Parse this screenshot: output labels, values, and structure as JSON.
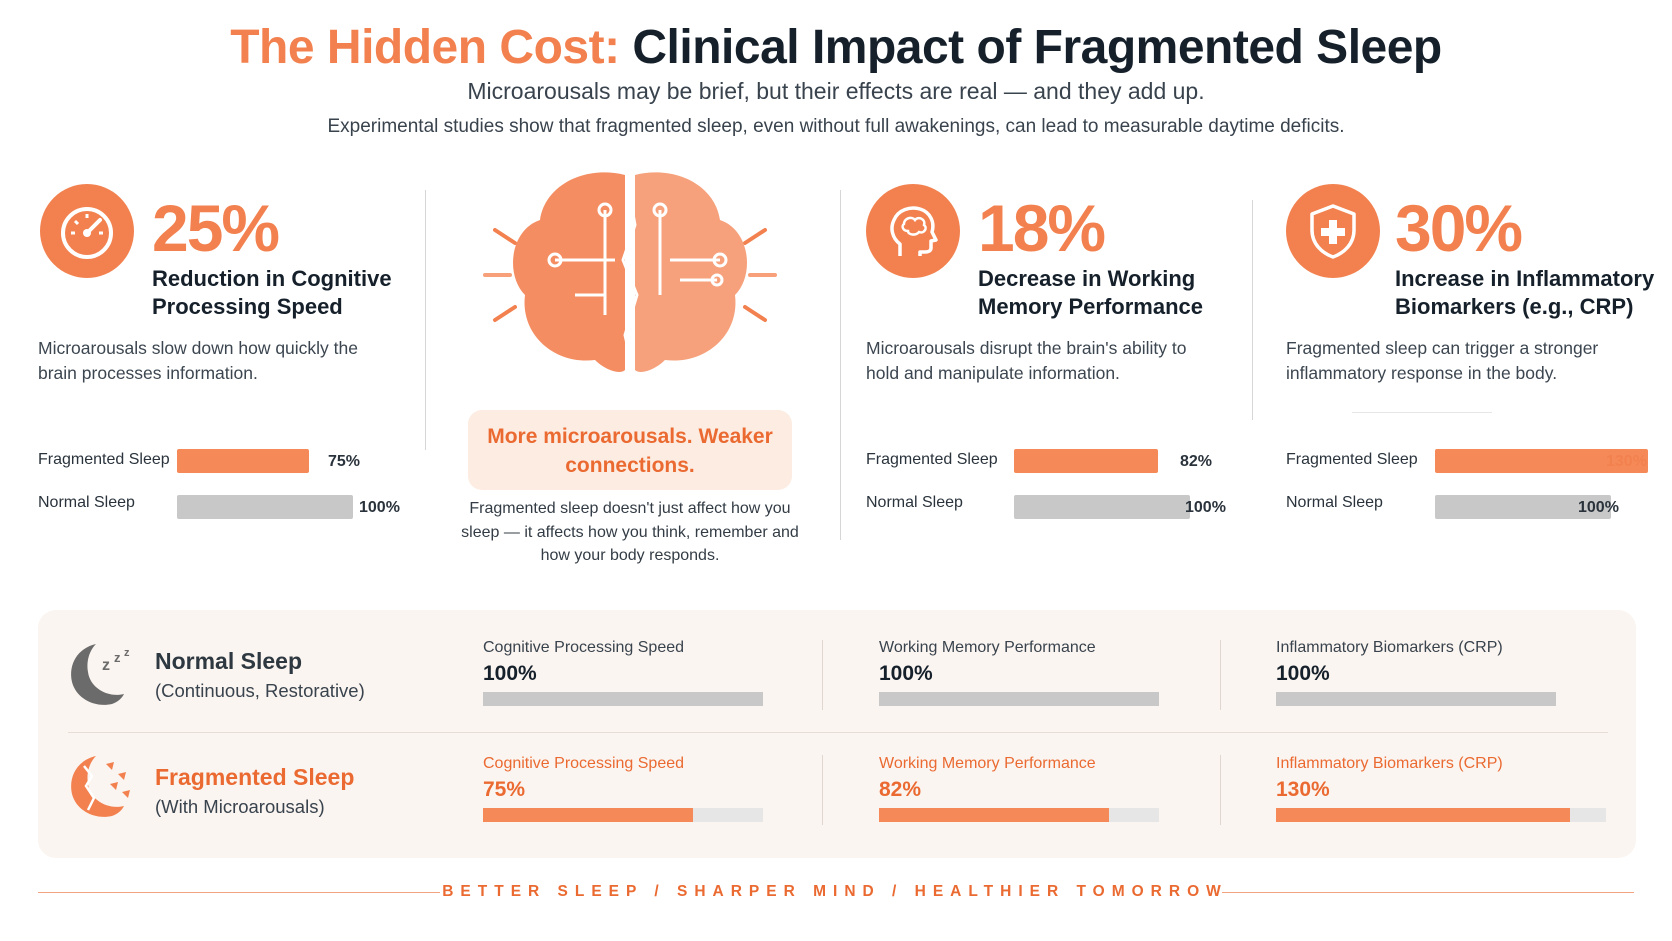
{
  "header": {
    "title_accent": "The Hidden Cost:",
    "title_main": "Clinical Impact of Fragmented Sleep",
    "subtitle": "Microarousals may be brief, but their effects are real — and they add up.",
    "intro": "Experimental studies show that fragmented sleep, even without full awakenings, can lead to measurable daytime deficits."
  },
  "colors": {
    "accent": "#f2814f",
    "accent_dark": "#ea6a31",
    "dark": "#15202b",
    "gray_bar": "#c8c8c8",
    "panel": "#fbf5f1"
  },
  "stats": [
    {
      "icon": "speedometer-icon",
      "percent": "25%",
      "label": "Reduction in Cognitive Processing Speed",
      "desc": "Microarousals slow down how quickly the brain processes information.",
      "frag_label": "Fragmented Sleep",
      "frag_value": "75%",
      "normal_label": "Normal Sleep",
      "normal_value": "100%"
    },
    {
      "icon": "head-brain-icon",
      "percent": "18%",
      "label": "Decrease in Working Memory Performance",
      "desc": "Microarousals disrupt the brain's ability to hold and manipulate information.",
      "frag_label": "Fragmented Sleep",
      "frag_value": "82%",
      "normal_label": "Normal Sleep",
      "normal_value": "100%"
    },
    {
      "icon": "shield-plus-icon",
      "percent": "30%",
      "label": "Increase in Inflammatory Biomarkers (e.g., CRP)",
      "desc": "Fragmented sleep can trigger a stronger inflammatory response in the body.",
      "frag_label": "Fragmented Sleep",
      "frag_value": "130%",
      "normal_label": "Normal Sleep",
      "normal_value": "100%"
    }
  ],
  "center": {
    "icon": "brain-icon",
    "callout": "More microarousals. Weaker connections.",
    "desc": "Fragmented sleep doesn't just affect how you sleep — it affects how you think, remember and how your body responds."
  },
  "comparison": {
    "normal": {
      "icon": "moon-zzz-icon",
      "title": "Normal Sleep",
      "subtitle": "(Continuous, Restorative)",
      "metrics": [
        {
          "label": "Cognitive Processing Speed",
          "value": "100%"
        },
        {
          "label": "Working Memory Performance",
          "value": "100%"
        },
        {
          "label": "Inflammatory Biomarkers (CRP)",
          "value": "100%"
        }
      ]
    },
    "fragmented": {
      "icon": "broken-moon-icon",
      "title": "Fragmented Sleep",
      "subtitle": "(With Microarousals)",
      "metrics": [
        {
          "label": "Cognitive Processing Speed",
          "value": "75%"
        },
        {
          "label": "Working Memory Performance",
          "value": "82%"
        },
        {
          "label": "Inflammatory Biomarkers (CRP)",
          "value": "130%"
        }
      ]
    }
  },
  "footer": {
    "tagline": "BETTER SLEEP / SHARPER MIND / HEALTHIER TOMORROW"
  },
  "chart_data": [
    {
      "type": "bar",
      "orientation": "horizontal",
      "title": "Reduction in Cognitive Processing Speed",
      "categories": [
        "Fragmented Sleep",
        "Normal Sleep"
      ],
      "values": [
        75,
        100
      ],
      "unit": "%"
    },
    {
      "type": "bar",
      "orientation": "horizontal",
      "title": "Decrease in Working Memory Performance",
      "categories": [
        "Fragmented Sleep",
        "Normal Sleep"
      ],
      "values": [
        82,
        100
      ],
      "unit": "%"
    },
    {
      "type": "bar",
      "orientation": "horizontal",
      "title": "Increase in Inflammatory Biomarkers (e.g., CRP)",
      "categories": [
        "Fragmented Sleep",
        "Normal Sleep"
      ],
      "values": [
        130,
        100
      ],
      "unit": "%"
    },
    {
      "type": "bar",
      "orientation": "horizontal",
      "categories": [
        "Cognitive Processing Speed",
        "Working Memory Performance",
        "Inflammatory Biomarkers (CRP)"
      ],
      "series": [
        {
          "name": "Normal Sleep",
          "values": [
            100,
            100,
            100
          ]
        },
        {
          "name": "Fragmented Sleep",
          "values": [
            75,
            82,
            130
          ]
        }
      ],
      "unit": "%"
    }
  ]
}
